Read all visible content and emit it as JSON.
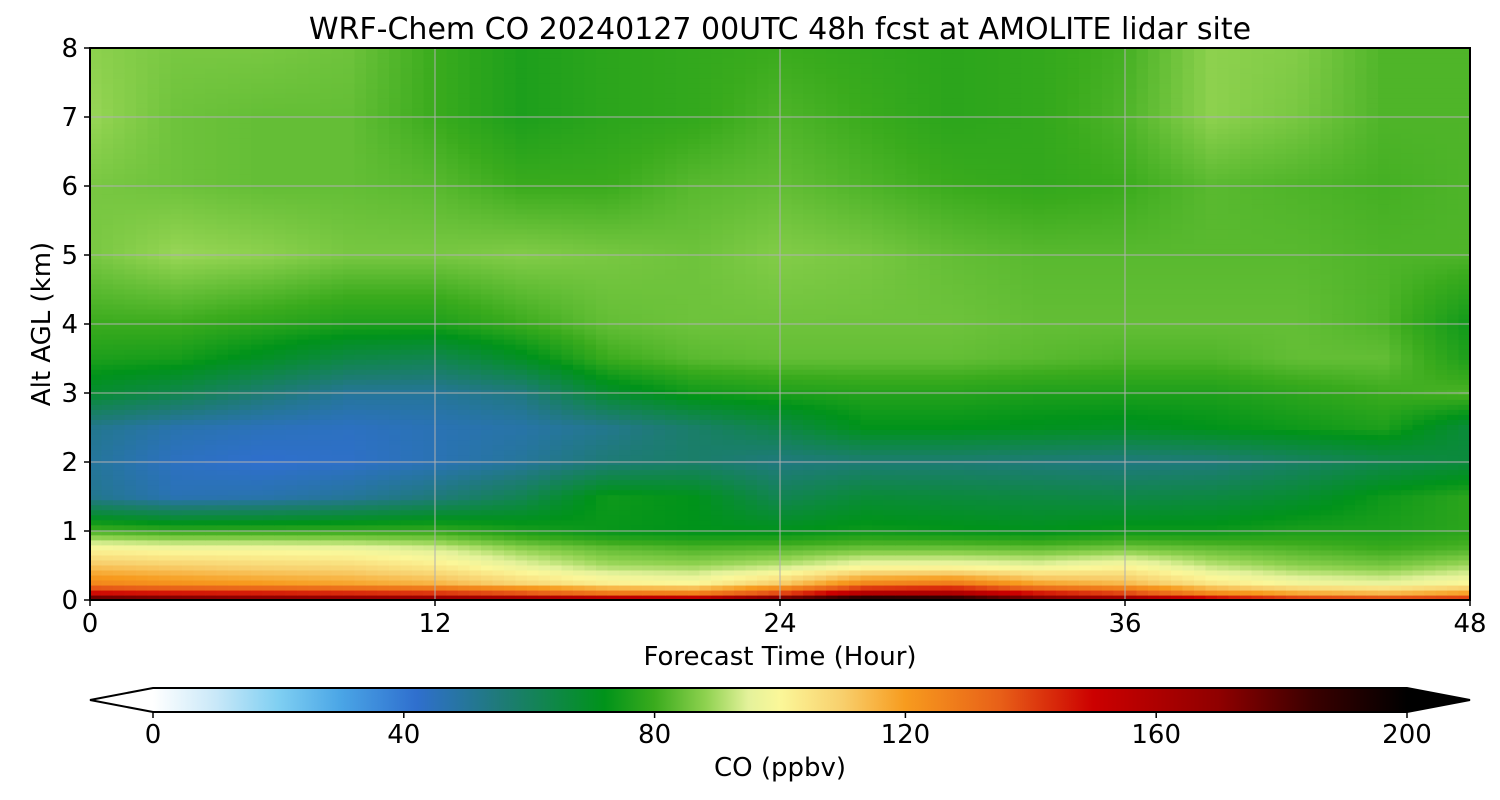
{
  "chart_data": {
    "type": "heatmap",
    "title": "WRF-Chem CO  20240127 00UTC 48h fcst at AMOLITE lidar site",
    "xlabel": "Forecast Time (Hour)",
    "ylabel": "Alt AGL (km)",
    "xlim": [
      0,
      48
    ],
    "ylim": [
      0,
      8
    ],
    "xticks": [
      0,
      12,
      24,
      36,
      48
    ],
    "yticks": [
      0,
      1,
      2,
      3,
      4,
      5,
      6,
      7,
      8
    ],
    "grid": true,
    "x": [
      0,
      3,
      6,
      9,
      12,
      15,
      18,
      21,
      24,
      27,
      30,
      33,
      36,
      39,
      42,
      45,
      48
    ],
    "y": [
      0,
      0.1,
      0.25,
      0.5,
      0.75,
      1,
      1.5,
      2,
      2.5,
      3,
      3.5,
      4,
      5,
      6,
      7,
      8
    ],
    "z": [
      [
        190,
        185,
        182,
        180,
        178,
        175,
        170,
        168,
        190,
        205,
        200,
        185,
        175,
        160,
        150,
        148,
        150
      ],
      [
        150,
        148,
        147,
        145,
        143,
        138,
        130,
        128,
        140,
        160,
        162,
        148,
        140,
        125,
        118,
        115,
        120
      ],
      [
        125,
        122,
        120,
        118,
        115,
        108,
        102,
        100,
        110,
        125,
        128,
        118,
        114,
        104,
        98,
        96,
        100
      ],
      [
        112,
        110,
        108,
        107,
        103,
        96,
        90,
        89,
        92,
        98,
        98,
        96,
        100,
        92,
        88,
        86,
        90
      ],
      [
        100,
        98,
        98,
        97,
        94,
        88,
        84,
        82,
        83,
        85,
        85,
        84,
        86,
        84,
        82,
        80,
        82
      ],
      [
        82,
        80,
        80,
        80,
        80,
        76,
        73,
        72,
        72,
        74,
        73,
        72,
        74,
        74,
        76,
        76,
        78
      ],
      [
        52,
        46,
        47,
        50,
        55,
        62,
        74,
        72,
        62,
        67,
        66,
        65,
        64,
        65,
        68,
        74,
        78
      ],
      [
        50,
        44,
        42,
        43,
        46,
        50,
        56,
        58,
        54,
        56,
        56,
        55,
        54,
        55,
        59,
        63,
        66
      ],
      [
        52,
        47,
        45,
        44,
        46,
        48,
        52,
        58,
        64,
        72,
        72,
        71,
        70,
        72,
        74,
        76,
        66
      ],
      [
        68,
        63,
        56,
        50,
        50,
        54,
        68,
        74,
        76,
        77,
        77,
        76,
        76,
        76,
        78,
        80,
        82
      ],
      [
        76,
        75,
        70,
        64,
        62,
        70,
        80,
        83,
        84,
        84,
        84,
        83,
        82,
        82,
        84,
        84,
        76
      ],
      [
        80,
        80,
        78,
        76,
        76,
        80,
        84,
        85,
        85,
        85,
        85,
        84,
        84,
        84,
        84,
        82,
        74
      ],
      [
        86,
        89,
        88,
        86,
        86,
        87,
        86,
        85,
        87,
        86,
        84,
        83,
        83,
        83,
        83,
        82,
        82
      ],
      [
        86,
        85,
        84,
        84,
        83,
        80,
        80,
        83,
        84,
        82,
        80,
        79,
        80,
        83,
        82,
        81,
        82
      ],
      [
        89,
        85,
        84,
        84,
        80,
        76,
        78,
        79,
        82,
        80,
        78,
        79,
        82,
        88,
        86,
        82,
        82
      ],
      [
        88,
        86,
        86,
        85,
        80,
        76,
        78,
        79,
        80,
        79,
        78,
        79,
        81,
        88,
        87,
        82,
        82
      ]
    ],
    "colorbar": {
      "label": "CO  (ppbv)",
      "min": 0,
      "max": 200,
      "ticks": [
        0,
        40,
        80,
        120,
        160,
        200
      ],
      "extend": "both",
      "stops": [
        [
          0,
          "#ffffff"
        ],
        [
          10,
          "#c9e8f8"
        ],
        [
          20,
          "#7fcff2"
        ],
        [
          30,
          "#4aa5e6"
        ],
        [
          42,
          "#2f6fce"
        ],
        [
          55,
          "#1f7a7a"
        ],
        [
          72,
          "#00931a"
        ],
        [
          80,
          "#3aab1d"
        ],
        [
          88,
          "#8dd14e"
        ],
        [
          95,
          "#e4f29b"
        ],
        [
          100,
          "#fbf799"
        ],
        [
          110,
          "#f8cf6c"
        ],
        [
          120,
          "#f79b1e"
        ],
        [
          135,
          "#e86018"
        ],
        [
          150,
          "#cc0000"
        ],
        [
          170,
          "#8f0000"
        ],
        [
          185,
          "#3a0000"
        ],
        [
          200,
          "#000000"
        ]
      ]
    }
  }
}
